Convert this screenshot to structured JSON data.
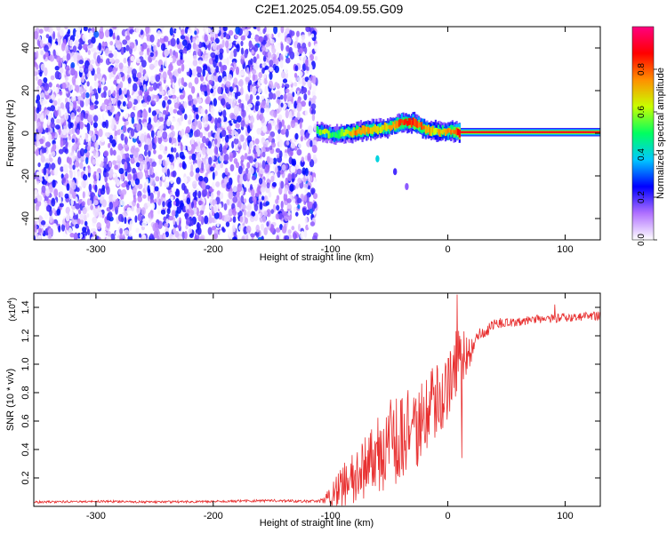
{
  "figure_title": "C2E1.2025.054.09.55.G09",
  "chart_data": [
    {
      "type": "heatmap",
      "title": "C2E1.2025.054.09.55.G09",
      "xlabel": "Height of straight line (km)",
      "ylabel": "Frequency (Hz)",
      "xlim": [
        -353,
        130
      ],
      "ylim": [
        -50,
        50
      ],
      "x_ticks": [
        -300,
        -200,
        -100,
        0,
        100
      ],
      "x_tick_labels": [
        "-300",
        "-200",
        "-100",
        "0",
        "100"
      ],
      "y_ticks": [
        -40,
        -20,
        0,
        20,
        40
      ],
      "y_tick_labels": [
        "-40",
        "-20",
        "0",
        "20",
        "40"
      ],
      "colorbar": {
        "label": "Normalized spectral amplitude",
        "range": [
          0,
          1
        ],
        "ticks": [
          0.0,
          0.2,
          0.4,
          0.6,
          0.8
        ],
        "tick_labels": [
          "0.0",
          "0.2",
          "0.4",
          "0.6",
          "0.8"
        ],
        "colors": [
          "#ffffff",
          "#b070ff",
          "#0000ff",
          "#00c8ff",
          "#00ff60",
          "#c8ff00",
          "#ff9000",
          "#ff0000",
          "#ff0080"
        ]
      },
      "noise_region_x": [
        -353,
        -112
      ],
      "signal_track": [
        {
          "x": -112,
          "y": 1.0,
          "amp": 0.55
        },
        {
          "x": -105,
          "y": 0.5,
          "amp": 0.65
        },
        {
          "x": -98,
          "y": -1.0,
          "amp": 0.5
        },
        {
          "x": -90,
          "y": 0.0,
          "amp": 0.6
        },
        {
          "x": -80,
          "y": 0.5,
          "amp": 0.8
        },
        {
          "x": -70,
          "y": 1.5,
          "amp": 0.75
        },
        {
          "x": -60,
          "y": 2.0,
          "amp": 0.7
        },
        {
          "x": -50,
          "y": 3.0,
          "amp": 0.75
        },
        {
          "x": -40,
          "y": 5.0,
          "amp": 0.85
        },
        {
          "x": -30,
          "y": 5.0,
          "amp": 0.9
        },
        {
          "x": -20,
          "y": 2.0,
          "amp": 0.8
        },
        {
          "x": -12,
          "y": 1.0,
          "amp": 0.7
        },
        {
          "x": -5,
          "y": 0.8,
          "amp": 0.75
        },
        {
          "x": 3,
          "y": 1.0,
          "amp": 0.8
        },
        {
          "x": 10,
          "y": 0.5,
          "amp": 0.95
        },
        {
          "x": 130,
          "y": 0.5,
          "amp": 0.95
        }
      ],
      "secondary_features": [
        {
          "x": -60,
          "y": -12,
          "amp": 0.4
        },
        {
          "x": -45,
          "y": -18,
          "amp": 0.2
        },
        {
          "x": -35,
          "y": -25,
          "amp": 0.15
        }
      ]
    },
    {
      "type": "line",
      "xlabel": "Height of straight line (km)",
      "ylabel": "SNR (10 * v/v)",
      "y_multiplier_label": "(x10",
      "y_multiplier_exp": "4",
      "y_multiplier_close": ")",
      "xlim": [
        -353,
        130
      ],
      "ylim": [
        0,
        15000
      ],
      "x_ticks": [
        -300,
        -200,
        -100,
        0,
        100
      ],
      "x_tick_labels": [
        "-300",
        "-200",
        "-100",
        "0",
        "100"
      ],
      "y_ticks": [
        2000,
        4000,
        6000,
        8000,
        10000,
        12000,
        14000
      ],
      "y_tick_labels": [
        "0.2",
        "0.4",
        "0.6",
        "0.8",
        "1.0",
        "1.2",
        "1.4"
      ],
      "line_color": "#e83030",
      "series": [
        {
          "x": [
            -353,
            -300,
            -250,
            -200,
            -150,
            -110,
            -100,
            -90,
            -80,
            -70,
            -60,
            -50,
            -40,
            -30,
            -20,
            -10,
            0,
            5,
            10,
            15,
            20,
            25,
            30,
            35,
            40,
            50,
            60,
            70,
            80,
            90,
            100,
            110,
            120,
            130
          ],
          "y": [
            300,
            350,
            300,
            350,
            400,
            350,
            700,
            1500,
            2200,
            2800,
            3600,
            4200,
            5000,
            5600,
            6000,
            7200,
            8800,
            9800,
            10500,
            10500,
            11000,
            11800,
            12200,
            12500,
            12800,
            13000,
            13000,
            13100,
            13200,
            13200,
            13300,
            13300,
            13400,
            13400
          ],
          "noise_amplitude": [
            80,
            80,
            80,
            80,
            90,
            100,
            700,
            1500,
            2000,
            2400,
            2800,
            3200,
            3500,
            3200,
            3000,
            3000,
            2600,
            2400,
            3000,
            1500,
            1000,
            600,
            500,
            450,
            400,
            350,
            350,
            300,
            300,
            300,
            300,
            300,
            300,
            300
          ]
        }
      ],
      "spikes": [
        {
          "x": 8,
          "y": 14900
        },
        {
          "x": 12,
          "y": 3400
        },
        {
          "x": 91,
          "y": 14200
        }
      ]
    }
  ]
}
